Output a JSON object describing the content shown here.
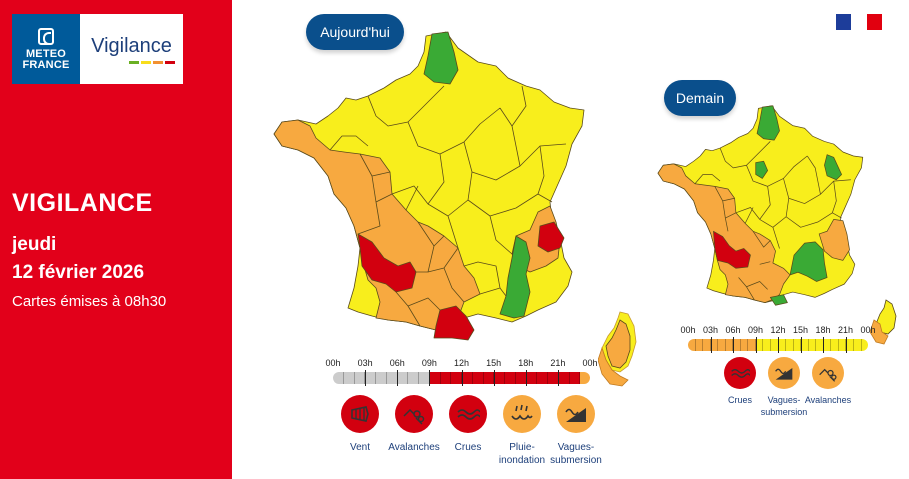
{
  "colors": {
    "green": "#3aaa35",
    "yellow": "#f8ee1c",
    "orange": "#f7a940",
    "red": "#d2000f",
    "grey": "#cccccc",
    "panel_red": "#e2001a",
    "navy": "#0a4f8c",
    "label_blue": "#1d3f7a"
  },
  "logo": {
    "brand_line1": "METEO",
    "brand_line2": "FRANCE",
    "product": "Vigilance",
    "bar_colors": [
      "#6ab023",
      "#f8dd1c",
      "#f29131",
      "#d2000f"
    ]
  },
  "left_panel": {
    "title": "VIGILANCE",
    "day": "jeudi",
    "date": "12 février 2026",
    "issued": "Cartes émises à 08h30"
  },
  "flag": {
    "colors": [
      "#1d3d9a",
      "#ffffff",
      "#e1000f"
    ]
  },
  "today": {
    "label": "Aujourd'hui",
    "timeline": {
      "labels": [
        "00h",
        "03h",
        "06h",
        "09h",
        "12h",
        "15h",
        "18h",
        "21h",
        "00h"
      ],
      "segments": [
        "grey",
        "grey",
        "grey",
        "grey",
        "grey",
        "grey",
        "grey",
        "grey",
        "grey",
        "red",
        "red",
        "red",
        "red",
        "red",
        "red",
        "red",
        "red",
        "red",
        "red",
        "red",
        "red",
        "red",
        "red",
        "orange"
      ]
    },
    "phenomena": [
      {
        "name": "Vent",
        "level": "red",
        "icon": "wind-icon"
      },
      {
        "name": "Avalanches",
        "level": "red",
        "icon": "avalanche-icon"
      },
      {
        "name": "Crues",
        "level": "red",
        "icon": "flood-icon"
      },
      {
        "name": "Pluie-\ninondation",
        "level": "orange",
        "icon": "rain-flood-icon"
      },
      {
        "name": "Vagues-\nsubmersion",
        "level": "orange",
        "icon": "waves-icon"
      }
    ]
  },
  "tomorrow": {
    "label": "Demain",
    "timeline": {
      "labels": [
        "00h",
        "03h",
        "06h",
        "09h",
        "12h",
        "15h",
        "18h",
        "21h",
        "00h"
      ],
      "segments": [
        "orange",
        "orange",
        "orange",
        "orange",
        "orange",
        "orange",
        "orange",
        "orange",
        "orange",
        "yellow",
        "yellow",
        "yellow",
        "yellow",
        "yellow",
        "yellow",
        "yellow",
        "yellow",
        "yellow",
        "yellow",
        "yellow",
        "yellow",
        "yellow",
        "yellow",
        "yellow"
      ]
    },
    "phenomena": [
      {
        "name": "Crues",
        "level": "red",
        "icon": "flood-icon"
      },
      {
        "name": "Vagues-\nsubmersion",
        "level": "orange",
        "icon": "waves-icon"
      },
      {
        "name": "Avalanches",
        "level": "orange",
        "icon": "avalanche-icon"
      }
    ]
  }
}
